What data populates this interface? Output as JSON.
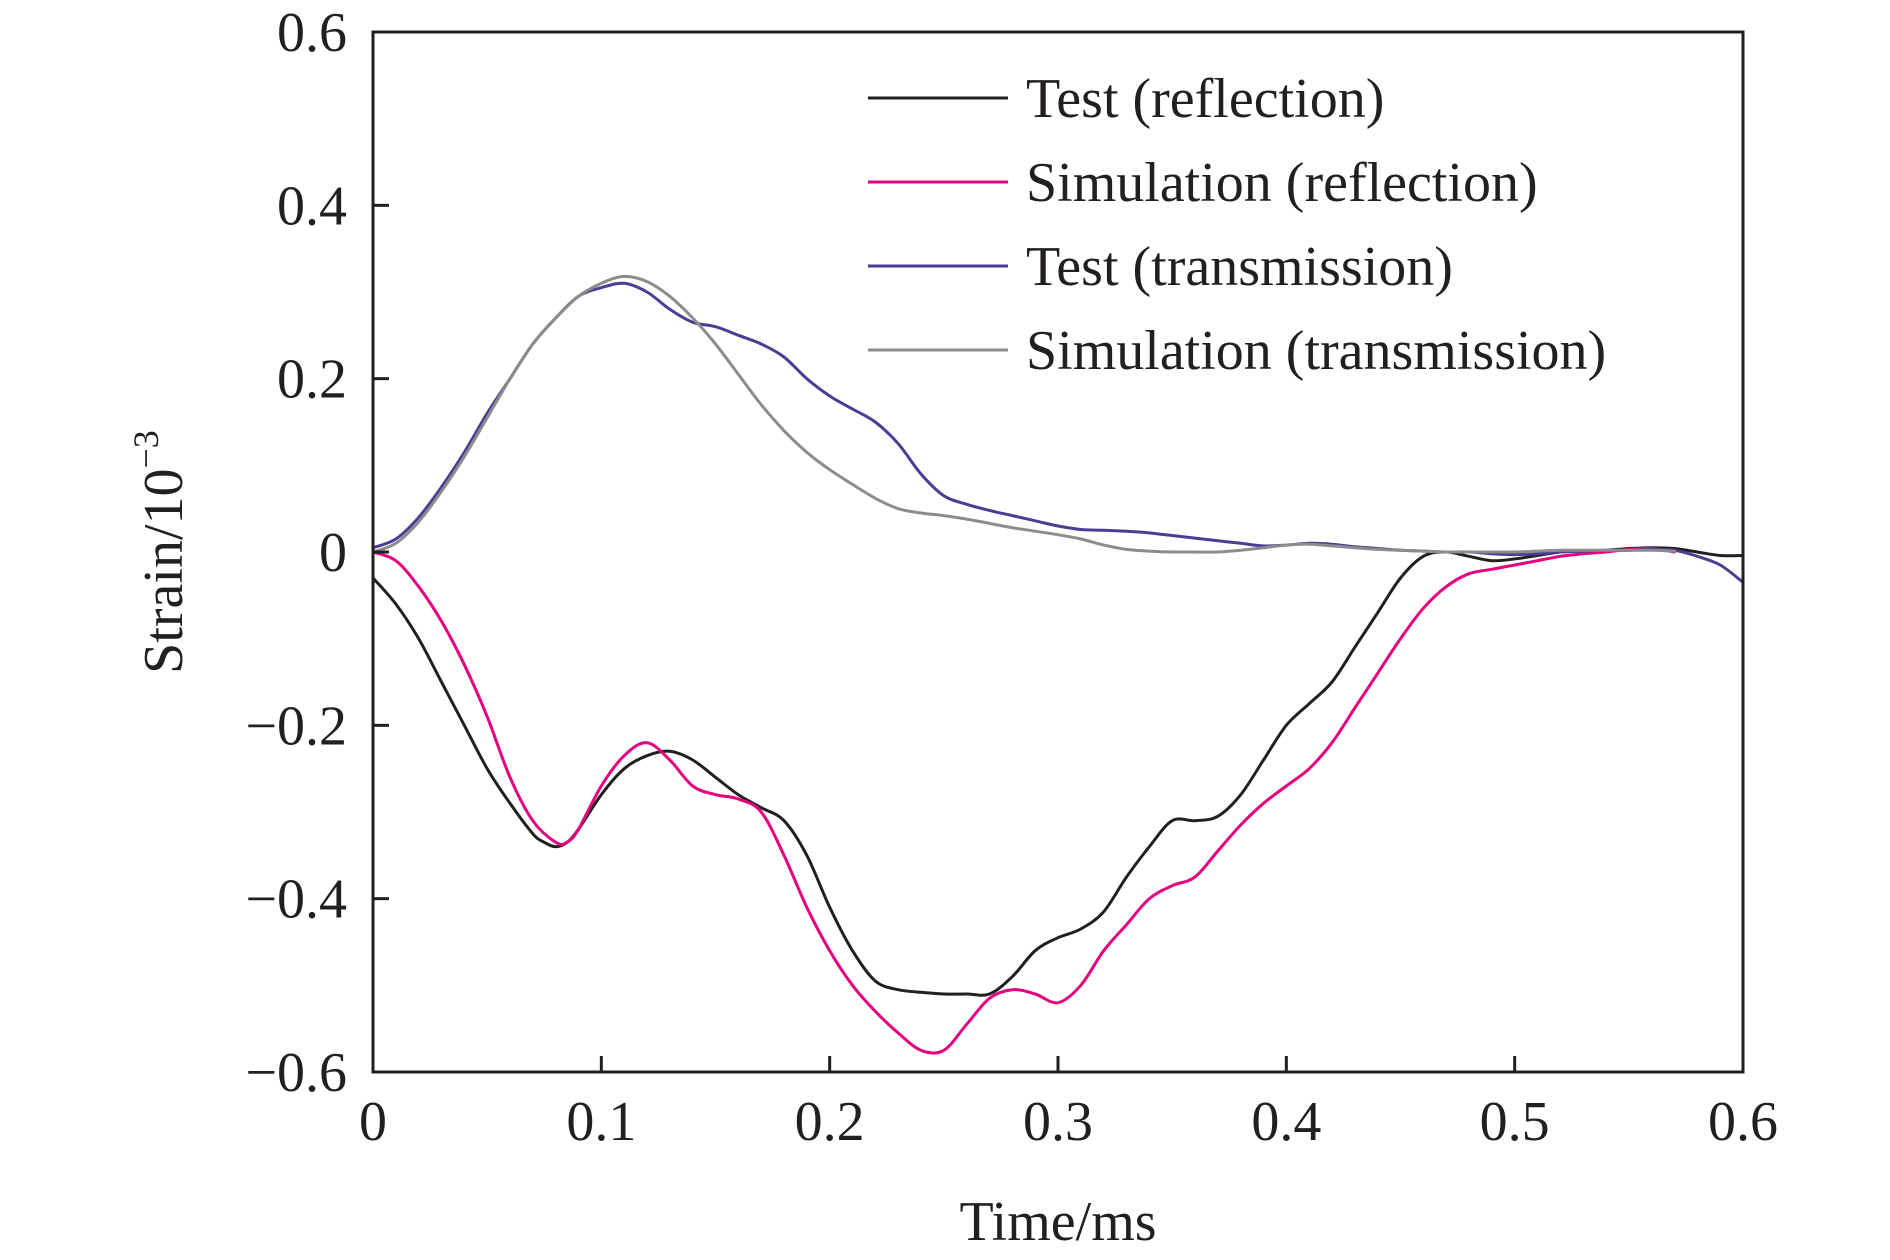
{
  "chart_data": {
    "type": "line",
    "title": "",
    "xlabel": "Time/ms",
    "ylabel": "Strain/10",
    "ylabel_exponent": "−3",
    "xlim": [
      0,
      0.6
    ],
    "ylim": [
      -0.6,
      0.6
    ],
    "x_ticks": [
      0,
      0.1,
      0.2,
      0.3,
      0.4,
      0.5,
      0.6
    ],
    "x_tick_labels": [
      "0",
      "0.1",
      "0.2",
      "0.3",
      "0.4",
      "0.5",
      "0.6"
    ],
    "y_ticks": [
      -0.6,
      -0.4,
      -0.2,
      0,
      0.2,
      0.4,
      0.6
    ],
    "y_tick_labels": [
      "−0.6",
      "−0.4",
      "−0.2",
      "0",
      "0.2",
      "0.4",
      "0.6"
    ],
    "grid": false,
    "legend_position": "top-right",
    "series": [
      {
        "name": "Test (reflection)",
        "color": "#231f20",
        "x": [
          0,
          0.01,
          0.02,
          0.03,
          0.04,
          0.05,
          0.06,
          0.07,
          0.075,
          0.08,
          0.085,
          0.09,
          0.1,
          0.11,
          0.12,
          0.13,
          0.14,
          0.15,
          0.16,
          0.17,
          0.18,
          0.19,
          0.2,
          0.21,
          0.22,
          0.23,
          0.24,
          0.25,
          0.26,
          0.27,
          0.28,
          0.29,
          0.3,
          0.31,
          0.32,
          0.33,
          0.34,
          0.35,
          0.36,
          0.37,
          0.38,
          0.39,
          0.4,
          0.41,
          0.42,
          0.43,
          0.44,
          0.45,
          0.46,
          0.47,
          0.48,
          0.49,
          0.5,
          0.51,
          0.52,
          0.53,
          0.54,
          0.55,
          0.56,
          0.57,
          0.58,
          0.59,
          0.6
        ],
        "y": [
          -0.03,
          -0.06,
          -0.1,
          -0.15,
          -0.2,
          -0.25,
          -0.29,
          -0.325,
          -0.335,
          -0.34,
          -0.335,
          -0.32,
          -0.28,
          -0.25,
          -0.235,
          -0.23,
          -0.24,
          -0.26,
          -0.28,
          -0.295,
          -0.31,
          -0.35,
          -0.41,
          -0.46,
          -0.495,
          -0.505,
          -0.508,
          -0.51,
          -0.51,
          -0.51,
          -0.49,
          -0.46,
          -0.445,
          -0.435,
          -0.415,
          -0.375,
          -0.34,
          -0.31,
          -0.31,
          -0.305,
          -0.28,
          -0.24,
          -0.2,
          -0.175,
          -0.15,
          -0.11,
          -0.07,
          -0.03,
          -0.005,
          0,
          -0.005,
          -0.01,
          -0.008,
          -0.004,
          0,
          0.001,
          0.002,
          0.004,
          0.005,
          0.004,
          0,
          -0.004,
          -0.004
        ]
      },
      {
        "name": "Simulation (reflection)",
        "color": "#e4007f",
        "x": [
          0,
          0.01,
          0.02,
          0.03,
          0.04,
          0.05,
          0.06,
          0.07,
          0.08,
          0.085,
          0.09,
          0.1,
          0.11,
          0.12,
          0.13,
          0.14,
          0.15,
          0.16,
          0.17,
          0.18,
          0.19,
          0.2,
          0.21,
          0.22,
          0.23,
          0.24,
          0.25,
          0.26,
          0.27,
          0.28,
          0.29,
          0.3,
          0.31,
          0.32,
          0.33,
          0.34,
          0.35,
          0.36,
          0.37,
          0.38,
          0.39,
          0.4,
          0.41,
          0.42,
          0.43,
          0.44,
          0.45,
          0.46,
          0.47,
          0.48,
          0.49,
          0.5,
          0.51,
          0.52,
          0.53,
          0.54,
          0.55,
          0.56,
          0.57
        ],
        "y": [
          0,
          -0.01,
          -0.04,
          -0.08,
          -0.13,
          -0.19,
          -0.26,
          -0.31,
          -0.335,
          -0.335,
          -0.32,
          -0.27,
          -0.235,
          -0.22,
          -0.24,
          -0.27,
          -0.28,
          -0.285,
          -0.3,
          -0.35,
          -0.41,
          -0.46,
          -0.5,
          -0.53,
          -0.555,
          -0.575,
          -0.575,
          -0.545,
          -0.515,
          -0.505,
          -0.51,
          -0.52,
          -0.5,
          -0.46,
          -0.43,
          -0.4,
          -0.385,
          -0.375,
          -0.345,
          -0.315,
          -0.29,
          -0.27,
          -0.25,
          -0.22,
          -0.18,
          -0.14,
          -0.1,
          -0.065,
          -0.04,
          -0.025,
          -0.02,
          -0.015,
          -0.01,
          -0.005,
          -0.002,
          0,
          0.003,
          0.004,
          0
        ]
      },
      {
        "name": "Test (transmission)",
        "color": "#4a3d96",
        "x": [
          0,
          0.01,
          0.02,
          0.03,
          0.04,
          0.05,
          0.06,
          0.07,
          0.08,
          0.09,
          0.1,
          0.11,
          0.12,
          0.13,
          0.14,
          0.15,
          0.16,
          0.17,
          0.18,
          0.19,
          0.2,
          0.21,
          0.22,
          0.23,
          0.24,
          0.25,
          0.26,
          0.27,
          0.28,
          0.29,
          0.3,
          0.31,
          0.32,
          0.33,
          0.34,
          0.35,
          0.36,
          0.37,
          0.38,
          0.39,
          0.4,
          0.41,
          0.42,
          0.43,
          0.44,
          0.45,
          0.46,
          0.47,
          0.48,
          0.49,
          0.5,
          0.51,
          0.52,
          0.53,
          0.54,
          0.55,
          0.56,
          0.57,
          0.58,
          0.59,
          0.6
        ],
        "y": [
          0.005,
          0.015,
          0.04,
          0.075,
          0.115,
          0.16,
          0.2,
          0.24,
          0.27,
          0.295,
          0.305,
          0.31,
          0.3,
          0.28,
          0.265,
          0.26,
          0.25,
          0.24,
          0.225,
          0.2,
          0.18,
          0.165,
          0.15,
          0.125,
          0.09,
          0.065,
          0.055,
          0.048,
          0.042,
          0.036,
          0.03,
          0.026,
          0.025,
          0.024,
          0.022,
          0.019,
          0.016,
          0.013,
          0.01,
          0.007,
          0.008,
          0.01,
          0.009,
          0.006,
          0.004,
          0.002,
          0.001,
          0,
          0,
          -0.002,
          -0.003,
          -0.002,
          0,
          0.001,
          0.002,
          0.002,
          0.003,
          0.002,
          -0.005,
          -0.015,
          -0.035
        ]
      },
      {
        "name": "Simulation (transmission)",
        "color": "#8c8c8c",
        "x": [
          0,
          0.01,
          0.02,
          0.03,
          0.04,
          0.05,
          0.06,
          0.07,
          0.08,
          0.09,
          0.1,
          0.11,
          0.12,
          0.13,
          0.14,
          0.15,
          0.16,
          0.17,
          0.18,
          0.19,
          0.2,
          0.21,
          0.22,
          0.23,
          0.24,
          0.25,
          0.26,
          0.27,
          0.28,
          0.29,
          0.3,
          0.31,
          0.32,
          0.33,
          0.34,
          0.35,
          0.36,
          0.37,
          0.38,
          0.39,
          0.4,
          0.41,
          0.42,
          0.43,
          0.44,
          0.45,
          0.46,
          0.47,
          0.48,
          0.49,
          0.5,
          0.51,
          0.52,
          0.53,
          0.54,
          0.55,
          0.56,
          0.57
        ],
        "y": [
          0,
          0.01,
          0.035,
          0.07,
          0.11,
          0.155,
          0.2,
          0.24,
          0.27,
          0.295,
          0.31,
          0.318,
          0.312,
          0.295,
          0.27,
          0.24,
          0.205,
          0.17,
          0.14,
          0.115,
          0.095,
          0.078,
          0.062,
          0.05,
          0.045,
          0.042,
          0.038,
          0.033,
          0.028,
          0.024,
          0.02,
          0.015,
          0.008,
          0.003,
          0.001,
          0,
          0,
          0,
          0.002,
          0.005,
          0.008,
          0.009,
          0.007,
          0.005,
          0.003,
          0.002,
          0.001,
          0,
          0,
          0,
          0,
          0.001,
          0.002,
          0.002,
          0.002,
          0.002,
          0.002,
          0.001
        ]
      }
    ]
  }
}
